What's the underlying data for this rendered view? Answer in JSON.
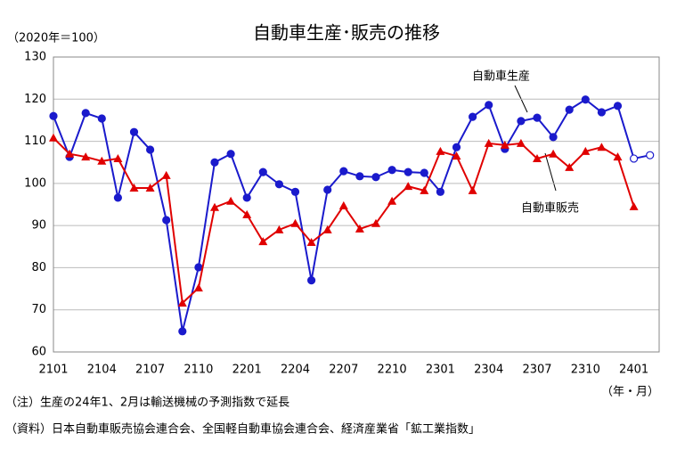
{
  "chart_data": {
    "type": "line",
    "title": "自動車生産･販売の推移",
    "unit_label": "（2020年＝100）",
    "x_label": "（年・月）",
    "notes": [
      "（注）生産の24年1、2月は輸送機械の予測指数で延長",
      "（資料）日本自動車販売協会連合会、全国軽自動車協会連合会、経済産業省「鉱工業指数」"
    ],
    "categories": [
      "2101",
      null,
      null,
      "2104",
      null,
      null,
      "2107",
      null,
      null,
      "2110",
      null,
      null,
      "2201",
      null,
      null,
      "2204",
      null,
      null,
      "2207",
      null,
      null,
      "2210",
      null,
      null,
      "2301",
      null,
      null,
      "2304",
      null,
      null,
      "2307",
      null,
      null,
      "2310",
      null,
      null,
      "2401",
      null
    ],
    "series": [
      {
        "name": "自動車生産",
        "color": "#1a1acc",
        "marker": "circle",
        "open_markers": [
          36,
          37
        ],
        "values": [
          116,
          106.3,
          116.7,
          115.4,
          96.6,
          112.2,
          108,
          91.3,
          64.9,
          80.1,
          105,
          107,
          96.6,
          102.7,
          99.8,
          98,
          77,
          98.5,
          102.9,
          101.7,
          101.5,
          103.2,
          102.7,
          102.5,
          98,
          108.6,
          115.8,
          118.6,
          108.2,
          114.8,
          115.6,
          111,
          117.5,
          119.9,
          116.9,
          118.4,
          105.9,
          106.7
        ]
      },
      {
        "name": "自動車販売",
        "color": "#e00000",
        "marker": "triangle",
        "values": [
          110.8,
          107,
          106.3,
          105.3,
          105.9,
          98.9,
          98.9,
          101.9,
          71.6,
          75.2,
          94.3,
          95.8,
          92.6,
          86.2,
          89,
          90.5,
          86,
          89,
          94.7,
          89.2,
          90.5,
          95.8,
          99.3,
          98.3,
          107.6,
          106.5,
          98.3,
          109.5,
          109.1,
          109.5,
          105.9,
          107,
          103.8,
          107.6,
          108.6,
          106.3,
          94.5,
          null
        ]
      }
    ],
    "ylim": [
      60,
      130
    ],
    "yticks": [
      60,
      70,
      80,
      90,
      100,
      110,
      120,
      130
    ],
    "grid": true
  }
}
